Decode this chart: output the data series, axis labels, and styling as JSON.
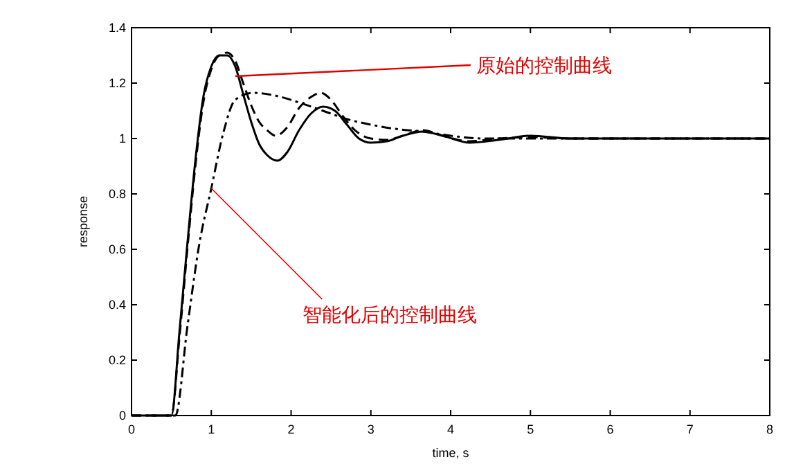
{
  "chart_data": {
    "type": "line",
    "xlabel": "time, s",
    "ylabel": "response",
    "xlim": [
      0,
      8
    ],
    "ylim": [
      0,
      1.4
    ],
    "xticks": [
      0,
      1,
      2,
      3,
      4,
      5,
      6,
      7,
      8
    ],
    "yticks": [
      0,
      0.2,
      0.4,
      0.6,
      0.8,
      1,
      1.2,
      1.4
    ],
    "grid": false,
    "series": [
      {
        "color": "#000000",
        "line_style": "solid",
        "x": [
          0,
          0.5,
          0.6,
          0.7,
          0.8,
          0.9,
          1.0,
          1.1,
          1.2,
          1.3,
          1.4,
          1.5,
          1.6,
          1.7,
          1.83,
          1.95,
          2.1,
          2.25,
          2.4,
          2.55,
          2.7,
          2.85,
          3.0,
          3.2,
          3.4,
          3.65,
          3.9,
          4.24,
          4.6,
          5.0,
          5.5,
          6,
          7,
          8
        ],
        "values": [
          0,
          0,
          0.3,
          0.62,
          0.92,
          1.15,
          1.26,
          1.3,
          1.3,
          1.26,
          1.16,
          1.06,
          0.98,
          0.94,
          0.92,
          0.95,
          1.03,
          1.09,
          1.115,
          1.1,
          1.05,
          1.0,
          0.985,
          0.99,
          1.01,
          1.025,
          1.01,
          0.985,
          0.995,
          1.01,
          1.0,
          1.0,
          1.0,
          1.0
        ]
      },
      {
        "color": "#000000",
        "line_style": "dashed",
        "x": [
          0,
          0.5,
          0.6,
          0.7,
          0.8,
          0.9,
          1.0,
          1.1,
          1.2,
          1.3,
          1.4,
          1.5,
          1.6,
          1.7,
          1.81,
          1.95,
          2.1,
          2.25,
          2.37,
          2.5,
          2.65,
          2.8,
          3.0,
          3.2,
          3.4,
          3.65,
          3.9,
          4.24,
          4.6,
          5.0,
          5.5,
          6,
          7,
          8
        ],
        "values": [
          0,
          0,
          0.28,
          0.6,
          0.9,
          1.13,
          1.25,
          1.3,
          1.31,
          1.28,
          1.2,
          1.12,
          1.06,
          1.03,
          1.01,
          1.04,
          1.11,
          1.15,
          1.165,
          1.14,
          1.08,
          1.03,
          1.0,
          0.995,
          1.01,
          1.03,
          1.01,
          0.99,
          1.0,
          1.005,
          1.0,
          1.0,
          1.0,
          1.0
        ]
      },
      {
        "color": "#000000",
        "line_style": "dashdot",
        "x": [
          0,
          0.55,
          0.7,
          0.85,
          1.0,
          1.15,
          1.3,
          1.52,
          1.8,
          2.1,
          2.4,
          2.7,
          3.0,
          3.3,
          3.65,
          4.0,
          4.4,
          5.0,
          5.5,
          6,
          7,
          8
        ],
        "values": [
          0,
          0,
          0.32,
          0.62,
          0.82,
          1.02,
          1.14,
          1.165,
          1.155,
          1.13,
          1.1,
          1.07,
          1.05,
          1.035,
          1.025,
          1.01,
          1.0,
          1.0,
          1.0,
          1.0,
          1.0,
          1.0
        ]
      }
    ],
    "annotations": [
      {
        "text": "原始的控制曲线",
        "x": 1.3,
        "y": 1.225
      },
      {
        "text": "智能化后的控制曲线",
        "x": 1.0,
        "y": 0.82
      }
    ]
  }
}
